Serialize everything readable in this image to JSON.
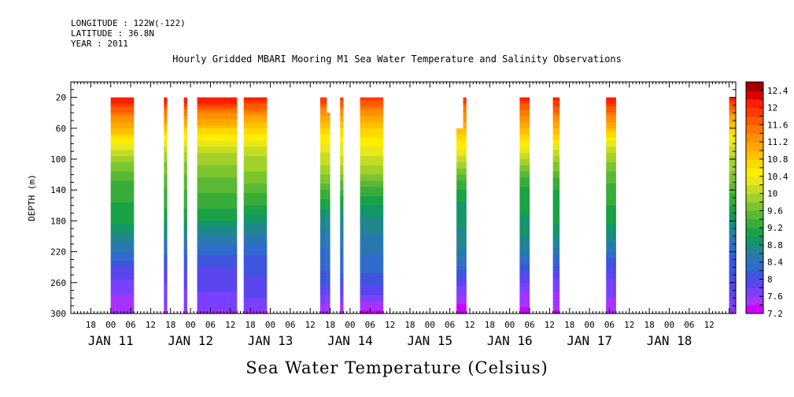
{
  "header": {
    "longitude": "LONGITUDE : 122W(-122)",
    "latitude": "LATITUDE : 36.8N",
    "year": "YEAR : 2011"
  },
  "chart_data": {
    "type": "heatmap",
    "title": "Hourly Gridded MBARI Mooring M1 Sea Water Temperature and Salinity Observations",
    "xlabel": "Sea Water Temperature (Celsius)",
    "ylabel": "DEPTH (m)",
    "x_unit": "hours since JAN 11 00:00 (2011)",
    "xlim": [
      -12,
      188
    ],
    "ylim": [
      300,
      0
    ],
    "y_ticks": [
      20,
      60,
      100,
      140,
      180,
      220,
      260,
      300
    ],
    "hour_tick_labels": [
      "18",
      "00",
      "06",
      "12",
      "18",
      "00",
      "06",
      "12",
      "18",
      "00",
      "06",
      "12",
      "18",
      "00",
      "06",
      "12",
      "18",
      "00",
      "06",
      "12",
      "18",
      "00",
      "06",
      "12",
      "18",
      "00",
      "06",
      "12",
      "18",
      "00",
      "06",
      "12"
    ],
    "date_labels": [
      {
        "label": "JAN 11",
        "hour": 0
      },
      {
        "label": "JAN 12",
        "hour": 24
      },
      {
        "label": "JAN 13",
        "hour": 48
      },
      {
        "label": "JAN 14",
        "hour": 72
      },
      {
        "label": "JAN 15",
        "hour": 96
      },
      {
        "label": "JAN 16",
        "hour": 120
      },
      {
        "label": "JAN 17",
        "hour": 144
      },
      {
        "label": "JAN 18",
        "hour": 168
      }
    ],
    "colorbar": {
      "levels": [
        7.2,
        7.4,
        7.6,
        7.8,
        8,
        8.2,
        8.4,
        8.6,
        8.8,
        9,
        9.2,
        9.4,
        9.6,
        9.8,
        10,
        10.2,
        10.4,
        10.6,
        10.8,
        11,
        11.2,
        11.4,
        11.6,
        11.8,
        12,
        12.2,
        12.4
      ],
      "labels": [
        "12.4",
        "12",
        "11.6",
        "11.2",
        "10.8",
        "10.4",
        "10",
        "9.6",
        "9.2",
        "8.8",
        "8.4",
        "8",
        "7.6",
        "7.2"
      ],
      "colors": [
        "#cc00ff",
        "#a633ff",
        "#7a40ff",
        "#5a45ee",
        "#3e55dd",
        "#2f6ccc",
        "#2979b0",
        "#20878f",
        "#13966a",
        "#1aa246",
        "#39ad3a",
        "#59b834",
        "#7cc52e",
        "#a2d22a",
        "#c6dc22",
        "#e8e81a",
        "#ffee00",
        "#ffd800",
        "#ffc000",
        "#ffa800",
        "#ff9000",
        "#ff7800",
        "#ff5a00",
        "#ff3a00",
        "#ff1e00",
        "#dd0000",
        "#a00000"
      ]
    },
    "data_segments": [
      {
        "start": 0,
        "end": 7,
        "top_depth": 20,
        "values_at_depths": {
          "depths": [
            20,
            40,
            60,
            80,
            100,
            140,
            180,
            220,
            260,
            300
          ],
          "temps": [
            12.1,
            11.4,
            10.9,
            10.4,
            10.0,
            9.3,
            8.9,
            8.4,
            7.9,
            7.4
          ]
        }
      },
      {
        "start": 16,
        "end": 17,
        "top_depth": 20
      },
      {
        "start": 22,
        "end": 23,
        "top_depth": 20
      },
      {
        "start": 26,
        "end": 38,
        "top_depth": 20
      },
      {
        "start": 40,
        "end": 47,
        "top_depth": 20
      },
      {
        "start": 63,
        "end": 65,
        "top_depth": 20
      },
      {
        "start": 65,
        "end": 66,
        "top_depth": 40
      },
      {
        "start": 69,
        "end": 70,
        "top_depth": 20
      },
      {
        "start": 75,
        "end": 82,
        "top_depth": 20
      },
      {
        "start": 104,
        "end": 106,
        "top_depth": 60
      },
      {
        "start": 106,
        "end": 107,
        "top_depth": 20
      },
      {
        "start": 123,
        "end": 126,
        "top_depth": 20
      },
      {
        "start": 133,
        "end": 135,
        "top_depth": 20
      },
      {
        "start": 149,
        "end": 152,
        "top_depth": 20
      },
      {
        "start": 186,
        "end": 188,
        "top_depth": 20
      }
    ]
  }
}
